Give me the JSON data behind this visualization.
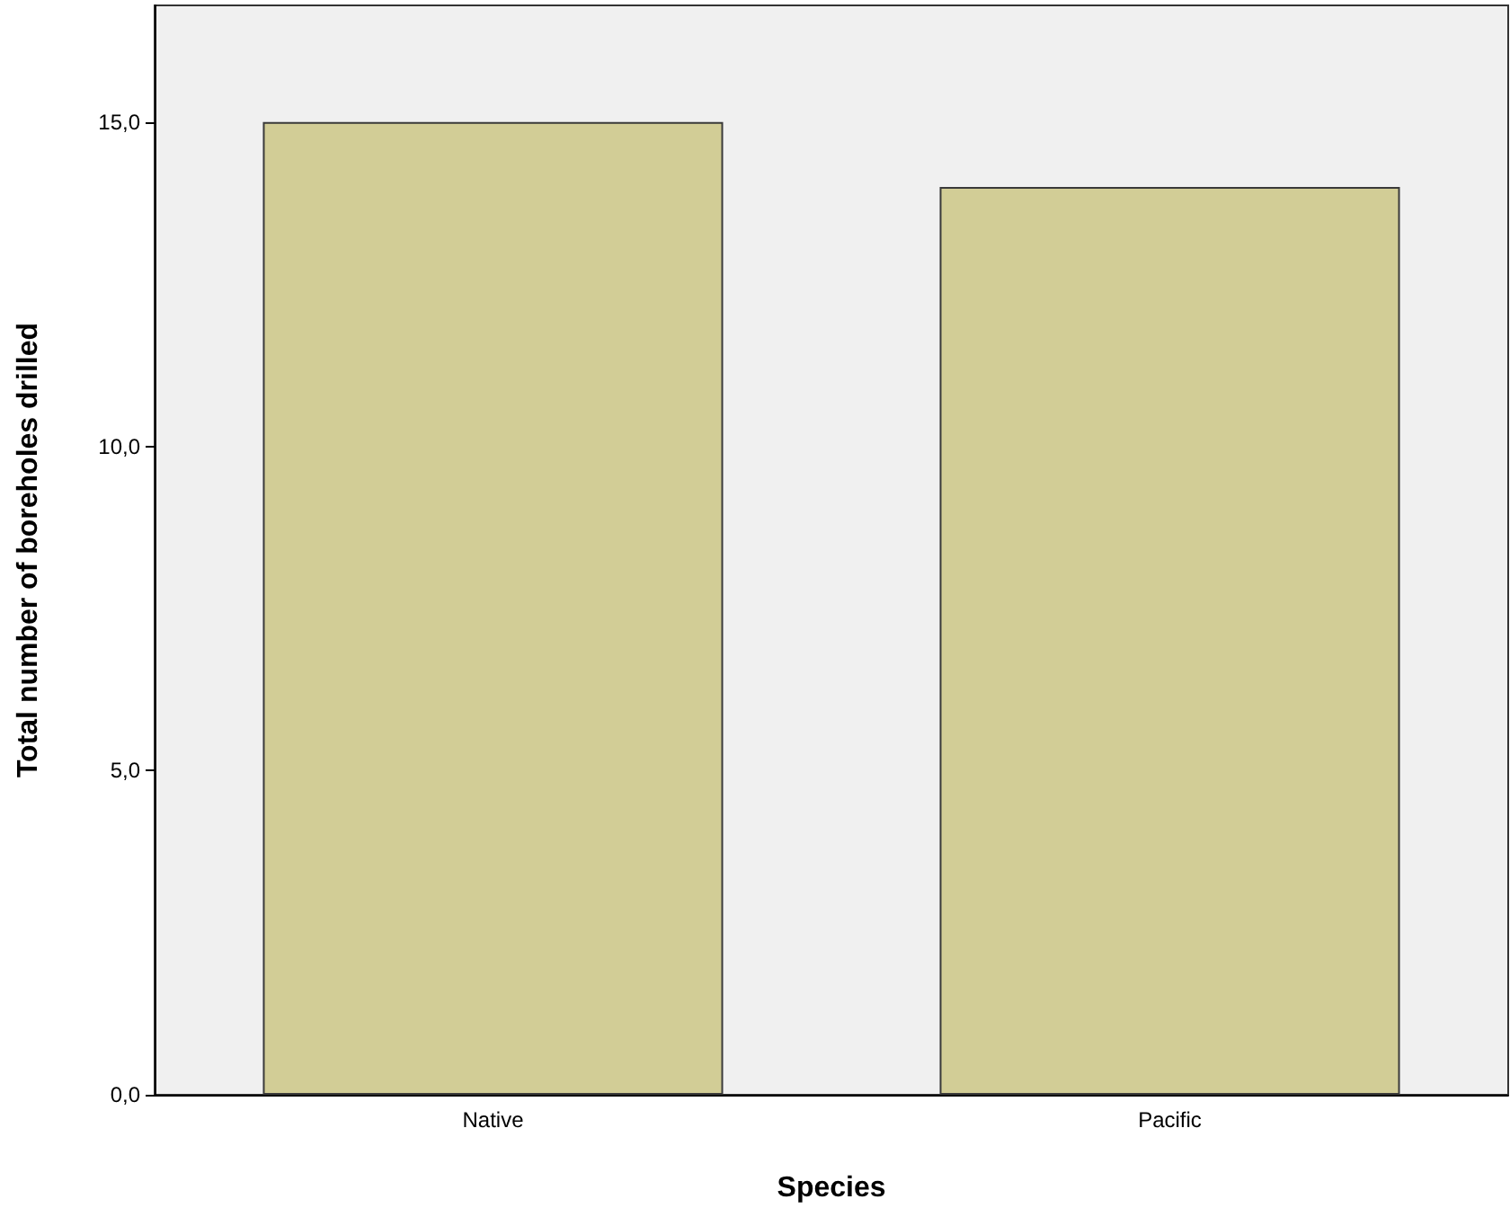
{
  "chart_data": {
    "type": "bar",
    "xlabel": "Species",
    "ylabel": "Total number of boreholes drilled",
    "categories": [
      "Native",
      "Pacific"
    ],
    "values": [
      15,
      14
    ],
    "color": "#d2cd96",
    "ylim": [
      0,
      16.8
    ],
    "yticks": [
      {
        "value": 0,
        "label": "0,0"
      },
      {
        "value": 5,
        "label": "5,0"
      },
      {
        "value": 10,
        "label": "10,0"
      },
      {
        "value": 15,
        "label": "15,0"
      }
    ],
    "grid": false
  }
}
